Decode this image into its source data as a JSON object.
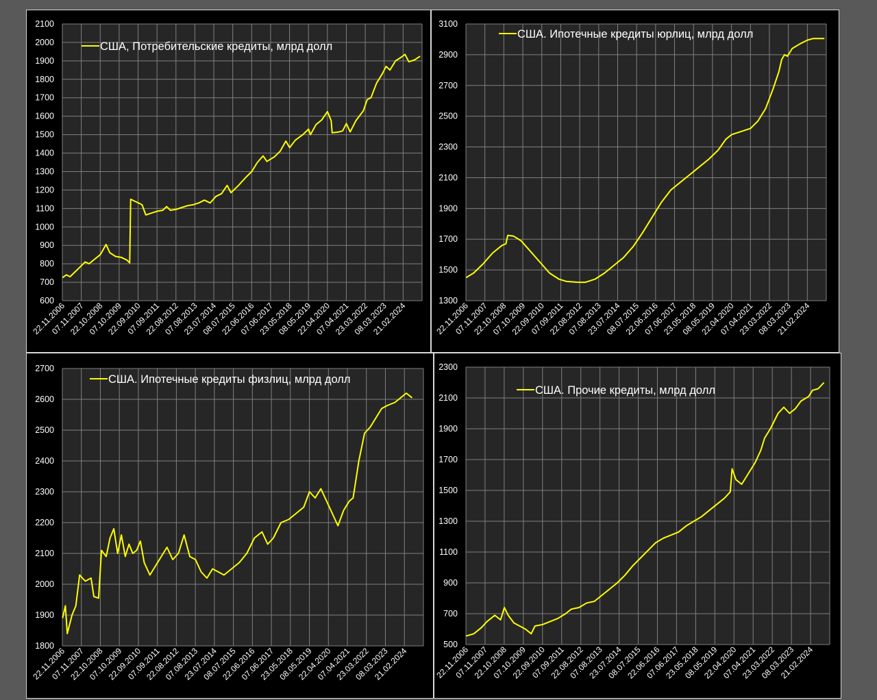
{
  "chart_data": [
    {
      "type": "line",
      "series": [
        {
          "name": "США, Потребительские кредиты, млрд долл",
          "color": "#ffff00"
        }
      ],
      "ylim": [
        600,
        2100
      ],
      "yticks": [
        600,
        700,
        800,
        900,
        1000,
        1100,
        1200,
        1300,
        1400,
        1500,
        1600,
        1700,
        1800,
        1900,
        2000,
        2100
      ],
      "x_tick_labels": [
        "22.11.2006",
        "07.11.2007",
        "22.10.2008",
        "07.10.2009",
        "22.09.2010",
        "07.09.2011",
        "22.08.2012",
        "07.08.2013",
        "23.07.2014",
        "08.07.2015",
        "22.06.2016",
        "07.06.2017",
        "23.05.2018",
        "08.05.2019",
        "22.04.2020",
        "07.04.2021",
        "23.03.2022",
        "08.03.2023",
        "21.02.2024"
      ],
      "grid": true,
      "legend_position": "top-left",
      "points": [
        [
          2006.9,
          725
        ],
        [
          2007.1,
          740
        ],
        [
          2007.3,
          730
        ],
        [
          2007.6,
          760
        ],
        [
          2007.9,
          790
        ],
        [
          2008.1,
          810
        ],
        [
          2008.3,
          800
        ],
        [
          2008.6,
          825
        ],
        [
          2008.9,
          850
        ],
        [
          2009.2,
          905
        ],
        [
          2009.4,
          860
        ],
        [
          2009.7,
          840
        ],
        [
          2010.0,
          835
        ],
        [
          2010.3,
          820
        ],
        [
          2010.45,
          805
        ],
        [
          2010.5,
          1150
        ],
        [
          2010.8,
          1135
        ],
        [
          2011.1,
          1120
        ],
        [
          2011.3,
          1065
        ],
        [
          2011.6,
          1075
        ],
        [
          2011.9,
          1085
        ],
        [
          2012.2,
          1090
        ],
        [
          2012.4,
          1110
        ],
        [
          2012.6,
          1090
        ],
        [
          2012.9,
          1095
        ],
        [
          2013.2,
          1105
        ],
        [
          2013.5,
          1115
        ],
        [
          2013.8,
          1120
        ],
        [
          2014.1,
          1130
        ],
        [
          2014.4,
          1145
        ],
        [
          2014.7,
          1130
        ],
        [
          2015.0,
          1165
        ],
        [
          2015.3,
          1180
        ],
        [
          2015.6,
          1225
        ],
        [
          2015.8,
          1185
        ],
        [
          2016.2,
          1225
        ],
        [
          2016.6,
          1270
        ],
        [
          2016.9,
          1300
        ],
        [
          2017.2,
          1350
        ],
        [
          2017.5,
          1385
        ],
        [
          2017.7,
          1355
        ],
        [
          2018.1,
          1380
        ],
        [
          2018.4,
          1410
        ],
        [
          2018.7,
          1465
        ],
        [
          2018.9,
          1430
        ],
        [
          2019.2,
          1470
        ],
        [
          2019.6,
          1500
        ],
        [
          2019.9,
          1530
        ],
        [
          2020.0,
          1500
        ],
        [
          2020.3,
          1555
        ],
        [
          2020.6,
          1580
        ],
        [
          2020.9,
          1625
        ],
        [
          2021.1,
          1575
        ],
        [
          2021.15,
          1510
        ],
        [
          2021.5,
          1515
        ],
        [
          2021.7,
          1520
        ],
        [
          2021.9,
          1560
        ],
        [
          2022.1,
          1515
        ],
        [
          2022.4,
          1575
        ],
        [
          2022.8,
          1630
        ],
        [
          2023.0,
          1690
        ],
        [
          2023.2,
          1700
        ],
        [
          2023.5,
          1780
        ],
        [
          2023.8,
          1830
        ],
        [
          2024.0,
          1870
        ],
        [
          2024.2,
          1850
        ],
        [
          2024.5,
          1900
        ],
        [
          2024.8,
          1920
        ],
        [
          2025.0,
          1935
        ],
        [
          2025.2,
          1895
        ],
        [
          2025.5,
          1905
        ],
        [
          2025.8,
          1925
        ]
      ]
    },
    {
      "type": "line",
      "series": [
        {
          "name": "США. Ипотечные кредиты юрлиц, млрд долл",
          "color": "#ffff00"
        }
      ],
      "ylim": [
        1300,
        3100
      ],
      "yticks": [
        1300,
        1500,
        1700,
        1900,
        2100,
        2300,
        2500,
        2700,
        2900,
        3100
      ],
      "x_tick_labels": [
        "22.11.2006",
        "07.11.2007",
        "22.10.2008",
        "07.10.2009",
        "22.09.2010",
        "07.09.2011",
        "22.08.2012",
        "07.08.2013",
        "23.07.2014",
        "08.07.2015",
        "22.06.2016",
        "07.06.2017",
        "23.05.2018",
        "08.05.2019",
        "22.04.2020",
        "07.04.2021",
        "23.03.2022",
        "08.03.2023",
        "21.02.2024"
      ],
      "grid": true,
      "legend_position": "top-center",
      "points": [
        [
          2006.9,
          1450
        ],
        [
          2007.3,
          1480
        ],
        [
          2007.8,
          1540
        ],
        [
          2008.3,
          1610
        ],
        [
          2008.8,
          1660
        ],
        [
          2009.0,
          1670
        ],
        [
          2009.1,
          1725
        ],
        [
          2009.4,
          1720
        ],
        [
          2009.8,
          1690
        ],
        [
          2010.3,
          1620
        ],
        [
          2010.8,
          1550
        ],
        [
          2011.3,
          1480
        ],
        [
          2011.8,
          1440
        ],
        [
          2012.2,
          1425
        ],
        [
          2012.8,
          1420
        ],
        [
          2013.2,
          1420
        ],
        [
          2013.7,
          1440
        ],
        [
          2014.2,
          1480
        ],
        [
          2014.7,
          1530
        ],
        [
          2015.2,
          1580
        ],
        [
          2015.7,
          1650
        ],
        [
          2016.2,
          1740
        ],
        [
          2016.7,
          1840
        ],
        [
          2017.2,
          1940
        ],
        [
          2017.7,
          2020
        ],
        [
          2018.2,
          2070
        ],
        [
          2018.7,
          2120
        ],
        [
          2019.2,
          2170
        ],
        [
          2019.7,
          2220
        ],
        [
          2020.2,
          2280
        ],
        [
          2020.6,
          2350
        ],
        [
          2020.9,
          2380
        ],
        [
          2021.4,
          2400
        ],
        [
          2021.9,
          2420
        ],
        [
          2022.3,
          2470
        ],
        [
          2022.7,
          2550
        ],
        [
          2023.1,
          2680
        ],
        [
          2023.4,
          2790
        ],
        [
          2023.55,
          2870
        ],
        [
          2023.7,
          2900
        ],
        [
          2023.85,
          2890
        ],
        [
          2024.1,
          2940
        ],
        [
          2024.5,
          2970
        ],
        [
          2024.9,
          2995
        ],
        [
          2025.2,
          3005
        ],
        [
          2025.8,
          3005
        ]
      ]
    },
    {
      "type": "line",
      "series": [
        {
          "name": "США. Ипотечные кредиты физлиц, млрд долл",
          "color": "#ffff00"
        }
      ],
      "ylim": [
        1800,
        2700
      ],
      "yticks": [
        1800,
        1900,
        2000,
        2100,
        2200,
        2300,
        2400,
        2500,
        2600,
        2700
      ],
      "x_tick_labels": [
        "22.11.2006",
        "07.11.2007",
        "22.10.2008",
        "07.10.2009",
        "22.09.2010",
        "07.09.2011",
        "22.08.2012",
        "07.08.2013",
        "23.07.2014",
        "08.07.2015",
        "22.06.2016",
        "07.06.2017",
        "23.05.2018",
        "08.05.2019",
        "22.04.2020",
        "07.04.2021",
        "23.03.2022",
        "08.03.2023",
        "21.02.2024"
      ],
      "grid": true,
      "legend_position": "top-center",
      "points": [
        [
          2006.9,
          1890
        ],
        [
          2007.05,
          1930
        ],
        [
          2007.15,
          1840
        ],
        [
          2007.4,
          1900
        ],
        [
          2007.6,
          1930
        ],
        [
          2007.8,
          2030
        ],
        [
          2008.1,
          2010
        ],
        [
          2008.4,
          2020
        ],
        [
          2008.55,
          1960
        ],
        [
          2008.8,
          1955
        ],
        [
          2008.95,
          2110
        ],
        [
          2009.2,
          2090
        ],
        [
          2009.4,
          2150
        ],
        [
          2009.6,
          2180
        ],
        [
          2009.8,
          2100
        ],
        [
          2010.0,
          2160
        ],
        [
          2010.2,
          2090
        ],
        [
          2010.4,
          2130
        ],
        [
          2010.6,
          2100
        ],
        [
          2010.8,
          2110
        ],
        [
          2011.0,
          2140
        ],
        [
          2011.2,
          2070
        ],
        [
          2011.5,
          2030
        ],
        [
          2011.8,
          2060
        ],
        [
          2012.1,
          2090
        ],
        [
          2012.4,
          2120
        ],
        [
          2012.7,
          2080
        ],
        [
          2013.0,
          2100
        ],
        [
          2013.3,
          2160
        ],
        [
          2013.6,
          2090
        ],
        [
          2013.9,
          2080
        ],
        [
          2014.2,
          2040
        ],
        [
          2014.5,
          2020
        ],
        [
          2014.8,
          2050
        ],
        [
          2015.1,
          2040
        ],
        [
          2015.4,
          2030
        ],
        [
          2015.8,
          2050
        ],
        [
          2016.2,
          2070
        ],
        [
          2016.6,
          2100
        ],
        [
          2017.0,
          2150
        ],
        [
          2017.4,
          2170
        ],
        [
          2017.7,
          2130
        ],
        [
          2018.0,
          2150
        ],
        [
          2018.4,
          2200
        ],
        [
          2018.8,
          2210
        ],
        [
          2019.2,
          2230
        ],
        [
          2019.6,
          2250
        ],
        [
          2019.9,
          2300
        ],
        [
          2020.2,
          2280
        ],
        [
          2020.5,
          2310
        ],
        [
          2020.8,
          2270
        ],
        [
          2021.1,
          2230
        ],
        [
          2021.4,
          2190
        ],
        [
          2021.7,
          2240
        ],
        [
          2022.0,
          2270
        ],
        [
          2022.2,
          2280
        ],
        [
          2022.5,
          2400
        ],
        [
          2022.8,
          2490
        ],
        [
          2023.1,
          2510
        ],
        [
          2023.4,
          2540
        ],
        [
          2023.7,
          2570
        ],
        [
          2024.0,
          2580
        ],
        [
          2024.4,
          2590
        ],
        [
          2024.8,
          2610
        ],
        [
          2025.0,
          2620
        ],
        [
          2025.3,
          2605
        ]
      ]
    },
    {
      "type": "line",
      "series": [
        {
          "name": "США. Прочие кредиты, млрд долл",
          "color": "#ffff00"
        }
      ],
      "ylim": [
        500,
        2300
      ],
      "yticks": [
        500,
        700,
        900,
        1100,
        1300,
        1500,
        1700,
        1900,
        2100,
        2300
      ],
      "x_tick_labels": [
        "22.11.2006",
        "07.11.2007",
        "22.10.2008",
        "07.10.2009",
        "22.09.2010",
        "07.09.2011",
        "22.08.2012",
        "07.08.2013",
        "23.07.2014",
        "08.07.2015",
        "22.06.2016",
        "07.06.2017",
        "23.05.2018",
        "08.05.2019",
        "22.04.2020",
        "07.04.2021",
        "23.03.2022",
        "08.03.2023",
        "21.02.2024"
      ],
      "grid": true,
      "legend_position": "top-center",
      "points": [
        [
          2006.9,
          555
        ],
        [
          2007.3,
          570
        ],
        [
          2007.7,
          610
        ],
        [
          2008.0,
          650
        ],
        [
          2008.4,
          690
        ],
        [
          2008.7,
          660
        ],
        [
          2008.9,
          740
        ],
        [
          2009.1,
          690
        ],
        [
          2009.4,
          640
        ],
        [
          2009.7,
          620
        ],
        [
          2010.0,
          600
        ],
        [
          2010.3,
          570
        ],
        [
          2010.5,
          620
        ],
        [
          2010.9,
          630
        ],
        [
          2011.3,
          650
        ],
        [
          2011.7,
          670
        ],
        [
          2012.1,
          700
        ],
        [
          2012.4,
          730
        ],
        [
          2012.8,
          740
        ],
        [
          2013.2,
          770
        ],
        [
          2013.6,
          780
        ],
        [
          2014.0,
          820
        ],
        [
          2014.4,
          860
        ],
        [
          2014.8,
          900
        ],
        [
          2015.2,
          950
        ],
        [
          2015.6,
          1010
        ],
        [
          2016.0,
          1060
        ],
        [
          2016.4,
          1110
        ],
        [
          2016.8,
          1160
        ],
        [
          2017.2,
          1190
        ],
        [
          2017.6,
          1210
        ],
        [
          2018.0,
          1230
        ],
        [
          2018.4,
          1270
        ],
        [
          2018.8,
          1300
        ],
        [
          2019.2,
          1330
        ],
        [
          2019.6,
          1370
        ],
        [
          2020.0,
          1410
        ],
        [
          2020.4,
          1450
        ],
        [
          2020.7,
          1490
        ],
        [
          2020.8,
          1640
        ],
        [
          2021.0,
          1570
        ],
        [
          2021.3,
          1540
        ],
        [
          2021.6,
          1600
        ],
        [
          2022.0,
          1680
        ],
        [
          2022.3,
          1760
        ],
        [
          2022.5,
          1840
        ],
        [
          2022.8,
          1900
        ],
        [
          2023.2,
          2000
        ],
        [
          2023.5,
          2040
        ],
        [
          2023.8,
          2000
        ],
        [
          2024.1,
          2030
        ],
        [
          2024.4,
          2080
        ],
        [
          2024.8,
          2110
        ],
        [
          2025.0,
          2150
        ],
        [
          2025.3,
          2160
        ],
        [
          2025.6,
          2200
        ]
      ]
    }
  ]
}
